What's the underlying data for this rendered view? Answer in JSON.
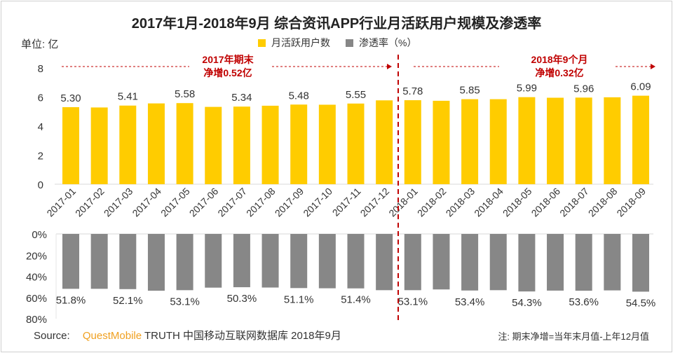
{
  "chart_data": [
    {
      "type": "bar",
      "title": "2017年1月-2018年9月 综合资讯APP行业月活跃用户规模及渗透率",
      "ylabel": "单位: 亿",
      "ylim": [
        0,
        8
      ],
      "yticks": [
        "0",
        "2",
        "4",
        "6",
        "8"
      ],
      "categories": [
        "2017-01",
        "2017-02",
        "2017-03",
        "2017-04",
        "2017-05",
        "2017-06",
        "2017-07",
        "2017-08",
        "2017-09",
        "2017-10",
        "2017-11",
        "2017-12",
        "2018-01",
        "2018-02",
        "2018-03",
        "2018-04",
        "2018-05",
        "2018-06",
        "2018-07",
        "2018-08",
        "2018-09"
      ],
      "series": [
        {
          "name": "月活跃用户数",
          "color": "#ffcc00",
          "values": [
            5.3,
            5.28,
            5.41,
            5.56,
            5.58,
            5.32,
            5.34,
            5.4,
            5.48,
            5.47,
            5.55,
            5.77,
            5.78,
            5.74,
            5.85,
            5.85,
            5.99,
            5.95,
            5.96,
            5.98,
            6.09
          ],
          "labels": [
            "5.30",
            "",
            "5.41",
            "",
            "5.58",
            "",
            "5.34",
            "",
            "5.48",
            "",
            "5.55",
            "",
            "5.78",
            "",
            "5.85",
            "",
            "5.99",
            "",
            "5.96",
            "",
            "6.09"
          ]
        }
      ],
      "grid": false,
      "legend": "top"
    },
    {
      "type": "bar",
      "ylim": [
        0,
        80
      ],
      "inverted": true,
      "yticks": [
        "0%",
        "20%",
        "40%",
        "60%",
        "80%"
      ],
      "series": [
        {
          "name": "渗透率（%）",
          "color": "#878787",
          "values": [
            51.8,
            51.8,
            52.1,
            53.6,
            53.1,
            50.7,
            50.3,
            50.6,
            51.1,
            51.3,
            51.4,
            53.1,
            53.1,
            52.4,
            53.4,
            53.1,
            54.3,
            53.5,
            53.6,
            53.3,
            54.5
          ],
          "labels": [
            "51.8%",
            "",
            "52.1%",
            "",
            "53.1%",
            "",
            "50.3%",
            "",
            "51.1%",
            "",
            "51.4%",
            "",
            "53.1%",
            "",
            "53.4%",
            "",
            "54.3%",
            "",
            "53.6%",
            "",
            "54.5%"
          ]
        }
      ]
    }
  ],
  "annotations": {
    "left": [
      "2017年期末",
      "净增0.52亿"
    ],
    "right": [
      "2018年9个月",
      "净增0.32亿"
    ],
    "color": "#c00000"
  },
  "footer": {
    "source_label": "Source:",
    "source_brand": "QuestMobile",
    "source_text": "TRUTH 中国移动互联网数据库 2018年9月",
    "note": "注: 期末净增=当年末月值-上年12月值"
  }
}
